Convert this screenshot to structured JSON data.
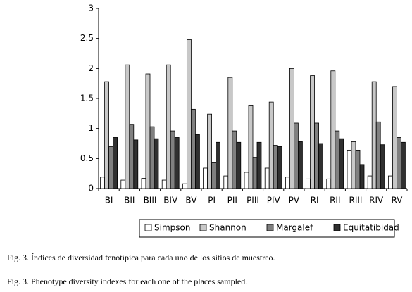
{
  "chart_data": {
    "type": "bar",
    "categories": [
      "BI",
      "BII",
      "BIII",
      "BIV",
      "BV",
      "PI",
      "PII",
      "PIII",
      "PIV",
      "PV",
      "RI",
      "RII",
      "RIII",
      "RIV",
      "RV"
    ],
    "series": [
      {
        "name": "Simpson",
        "color": "#ffffff",
        "values": [
          0.19,
          0.14,
          0.17,
          0.14,
          0.08,
          0.34,
          0.21,
          0.27,
          0.34,
          0.19,
          0.16,
          0.16,
          0.64,
          0.21,
          0.21
        ]
      },
      {
        "name": "Shannon",
        "color": "#c8c8c8",
        "values": [
          1.78,
          2.06,
          1.91,
          2.06,
          2.48,
          1.24,
          1.85,
          1.39,
          1.44,
          2.0,
          1.88,
          1.96,
          0.78,
          1.78,
          1.7
        ]
      },
      {
        "name": "Margalef",
        "color": "#808080",
        "values": [
          0.7,
          1.07,
          1.03,
          0.96,
          1.32,
          0.44,
          0.96,
          0.52,
          0.72,
          1.09,
          1.09,
          0.96,
          0.64,
          1.11,
          0.85
        ]
      },
      {
        "name": "Equitatibidad",
        "color": "#303030",
        "values": [
          0.85,
          0.81,
          0.83,
          0.85,
          0.9,
          0.77,
          0.77,
          0.77,
          0.7,
          0.78,
          0.75,
          0.83,
          0.4,
          0.73,
          0.77
        ]
      }
    ],
    "ylim": [
      0,
      3
    ],
    "yticks": [
      0,
      0.5,
      1,
      1.5,
      2,
      2.5,
      3
    ],
    "grid": false
  },
  "captions": [
    "Fig. 3. Índices de diversidad fenotípica para cada uno de los sitios de muestreo.",
    "Fig. 3. Phenotype diversity indexes for each one of the places sampled."
  ]
}
